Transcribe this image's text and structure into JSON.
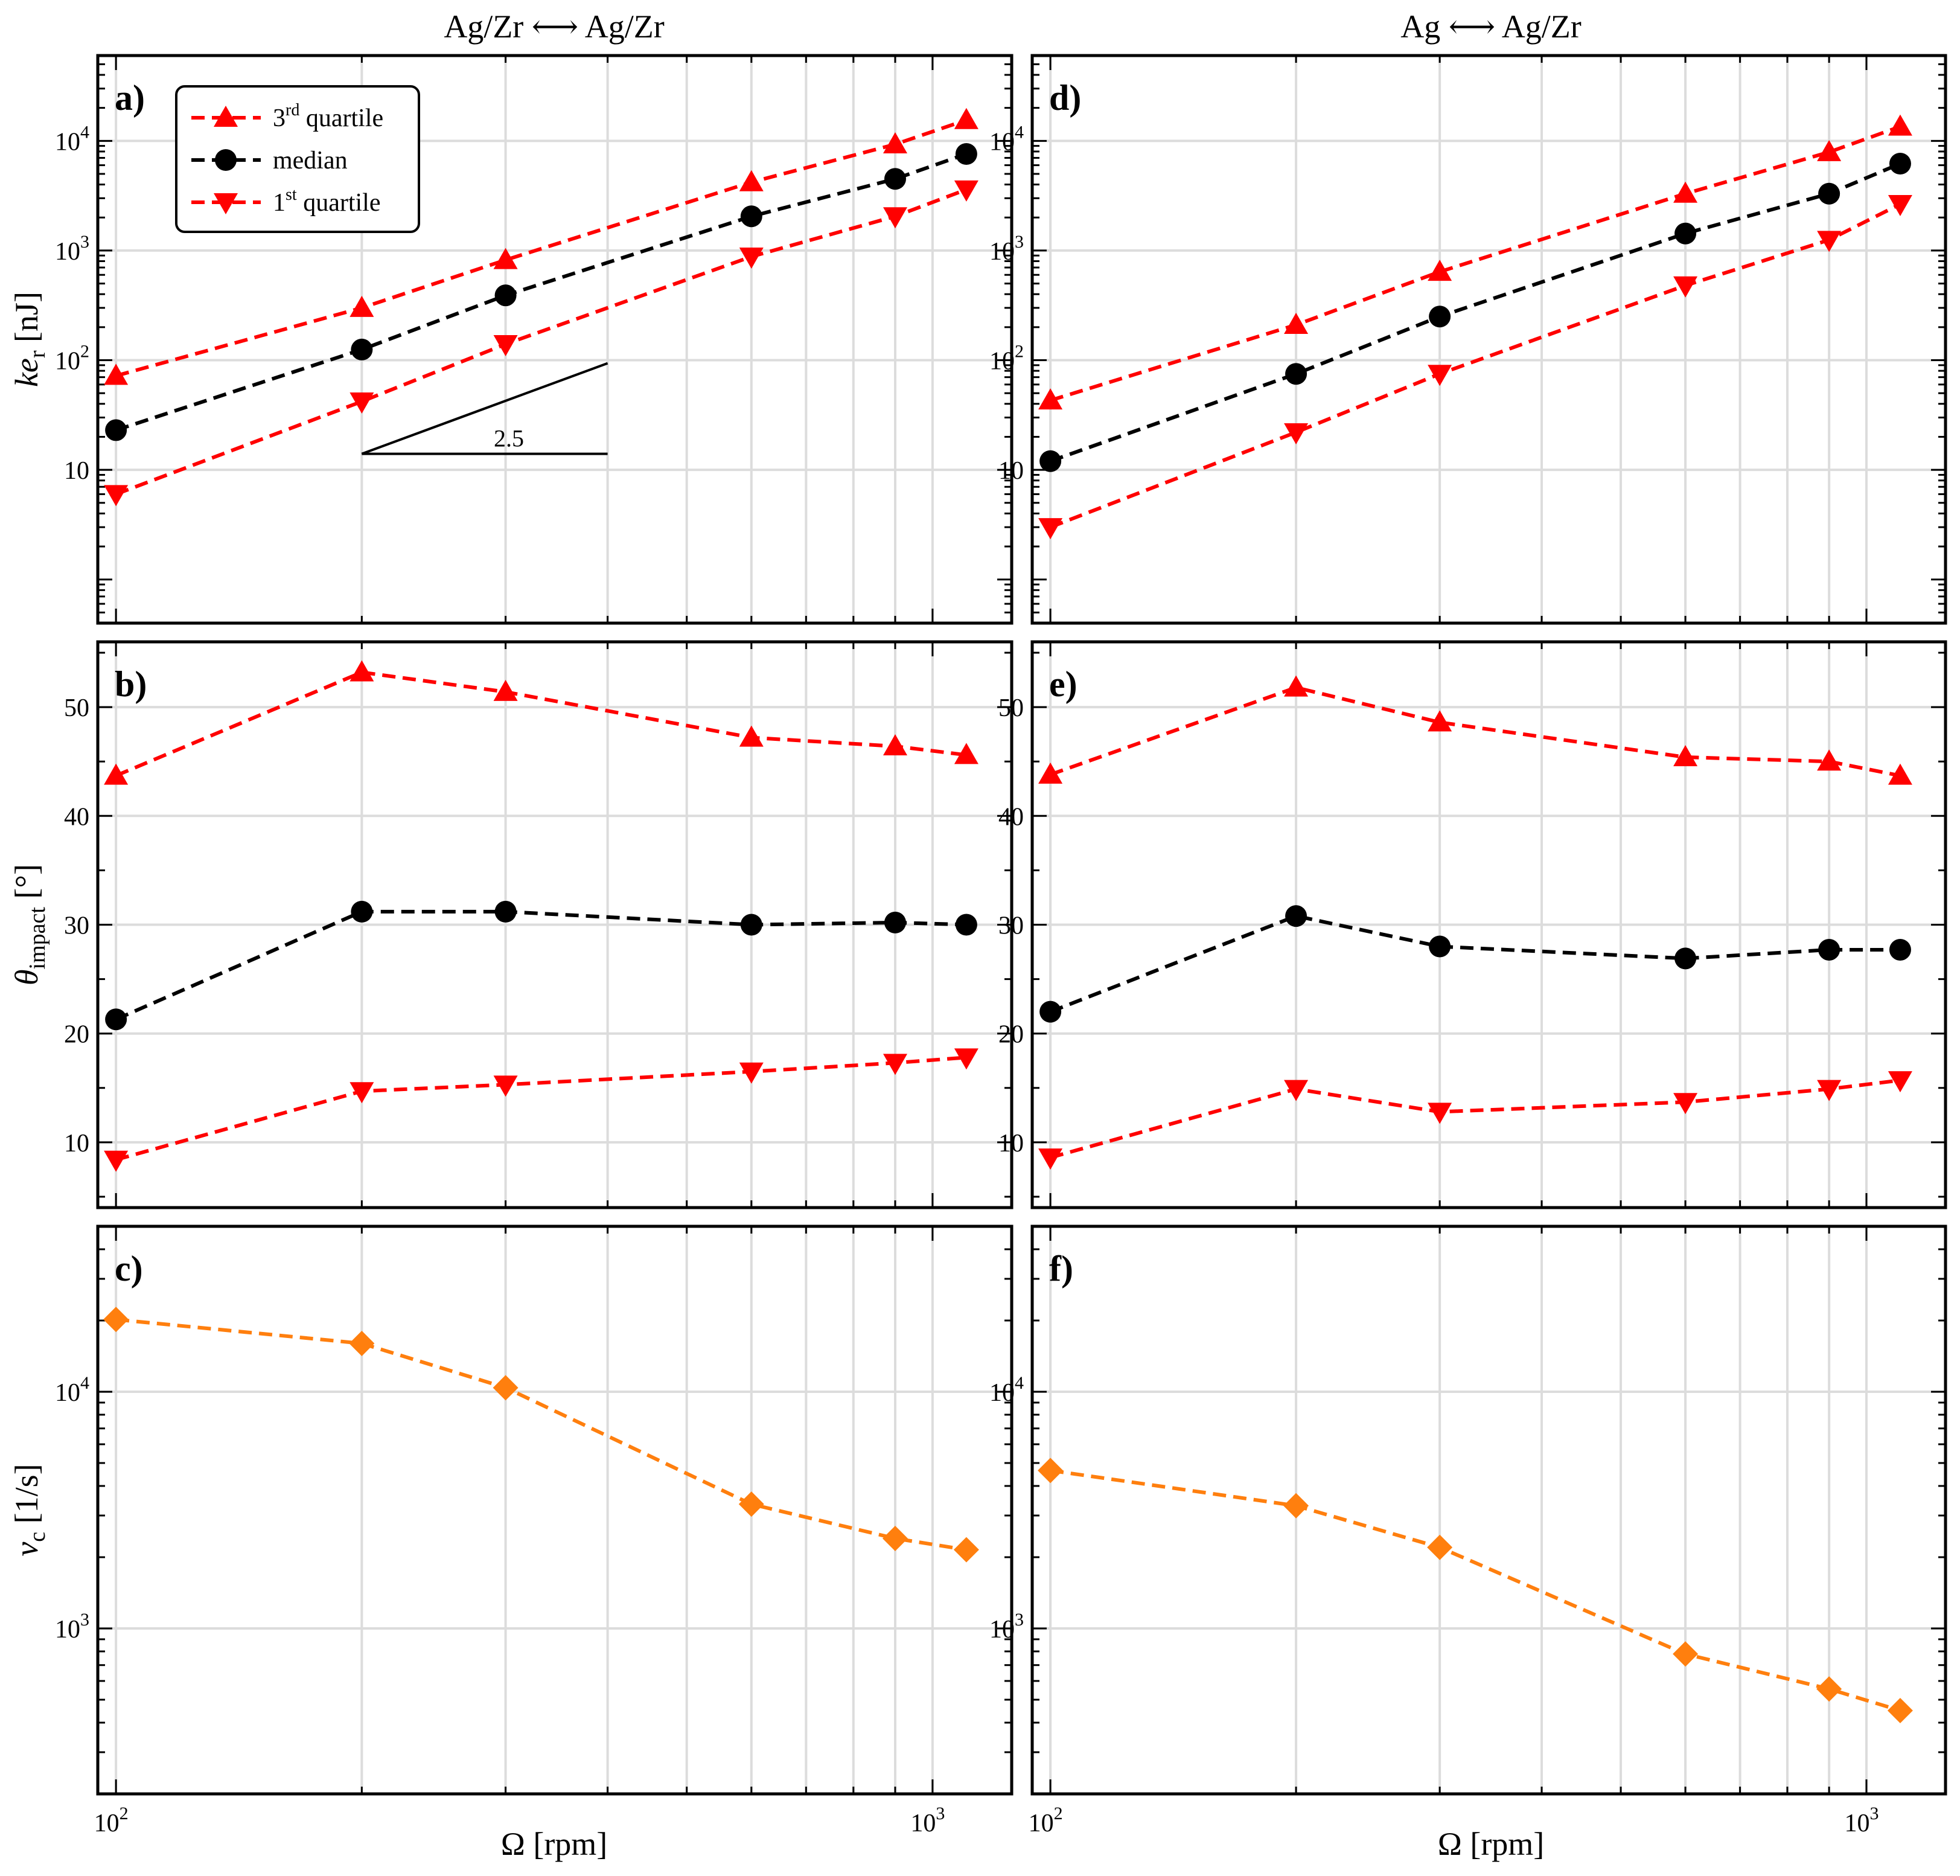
{
  "columns": [
    {
      "title": "Ag/Zr ⟷ Ag/Zr"
    },
    {
      "title": "Ag ⟷ Ag/Zr"
    }
  ],
  "x_axis": {
    "label": "Ω [rpm]",
    "scale": "log",
    "lim": [
      95,
      1250
    ],
    "tick_labels": [
      "10",
      "10"
    ],
    "tick_exponents": [
      "2",
      "3"
    ],
    "tick_values": [
      100,
      1000
    ]
  },
  "legend": {
    "entries": [
      {
        "label": "3",
        "sup": "rd",
        "rest": " quartile",
        "marker": "triangle-up",
        "color": "#ff0000"
      },
      {
        "label": "median",
        "sup": "",
        "rest": "",
        "marker": "circle",
        "color": "#000000"
      },
      {
        "label": "1",
        "sup": "st",
        "rest": " quartile",
        "marker": "triangle-down",
        "color": "#ff0000"
      }
    ]
  },
  "slope_annotation": {
    "text": "2.5"
  },
  "chart_data": [
    {
      "panel": "a)",
      "type": "line",
      "yscale": "log",
      "ylabel_main": "ke",
      "ylabel_sub": "r",
      "ylabel_unit": " [nJ]",
      "ylim": [
        0.4,
        60000
      ],
      "yticks": [
        {
          "v": 10,
          "t": "10",
          "e": ""
        },
        {
          "v": 100,
          "t": "10",
          "e": "2"
        },
        {
          "v": 1000,
          "t": "10",
          "e": "3"
        },
        {
          "v": 10000,
          "t": "10",
          "e": "4"
        }
      ],
      "x": [
        100,
        200,
        300,
        600,
        900,
        1100
      ],
      "series": [
        {
          "name": "3rd quartile",
          "color": "#ff0000",
          "marker": "triangle-up",
          "values": [
            72,
            300,
            820,
            4200,
            9300,
            15500
          ]
        },
        {
          "name": "median",
          "color": "#000000",
          "marker": "circle",
          "values": [
            23,
            125,
            390,
            2050,
            4500,
            7600
          ]
        },
        {
          "name": "1st quartile",
          "color": "#ff0000",
          "marker": "triangle-down",
          "values": [
            6,
            42,
            140,
            880,
            2050,
            3600
          ]
        }
      ]
    },
    {
      "panel": "b)",
      "type": "line",
      "yscale": "linear",
      "ylabel_main": "θ",
      "ylabel_sub": "impact",
      "ylabel_unit": " [°]",
      "ylim": [
        4,
        56
      ],
      "yticks": [
        {
          "v": 10,
          "t": "10",
          "e": ""
        },
        {
          "v": 20,
          "t": "20",
          "e": ""
        },
        {
          "v": 30,
          "t": "30",
          "e": ""
        },
        {
          "v": 40,
          "t": "40",
          "e": ""
        },
        {
          "v": 50,
          "t": "50",
          "e": ""
        }
      ],
      "x": [
        100,
        200,
        300,
        600,
        900,
        1100
      ],
      "series": [
        {
          "name": "3rd quartile",
          "color": "#ff0000",
          "marker": "triangle-up",
          "values": [
            43.7,
            53.2,
            51.4,
            47.2,
            46.4,
            45.6
          ]
        },
        {
          "name": "median",
          "color": "#000000",
          "marker": "circle",
          "values": [
            21.3,
            31.2,
            31.2,
            30.0,
            30.2,
            30.0
          ]
        },
        {
          "name": "1st quartile",
          "color": "#ff0000",
          "marker": "triangle-down",
          "values": [
            8.4,
            14.7,
            15.3,
            16.5,
            17.3,
            17.8
          ]
        }
      ]
    },
    {
      "panel": "c)",
      "type": "line",
      "yscale": "log",
      "ylabel_main": "ν",
      "ylabel_sub": "c",
      "ylabel_unit": " [1/s]",
      "ylim": [
        200,
        50000
      ],
      "yticks": [
        {
          "v": 1000,
          "t": "10",
          "e": "3"
        },
        {
          "v": 10000,
          "t": "10",
          "e": "4"
        }
      ],
      "x": [
        100,
        200,
        300,
        600,
        900,
        1100
      ],
      "series": [
        {
          "name": "ν_c",
          "color": "#ff7f0e",
          "marker": "diamond",
          "values": [
            20200,
            16000,
            10400,
            3350,
            2400,
            2150
          ]
        }
      ]
    },
    {
      "panel": "d)",
      "type": "line",
      "yscale": "log",
      "ylim": [
        0.4,
        60000
      ],
      "yticks": [
        {
          "v": 10,
          "t": "10",
          "e": ""
        },
        {
          "v": 100,
          "t": "10",
          "e": "2"
        },
        {
          "v": 1000,
          "t": "10",
          "e": "3"
        },
        {
          "v": 10000,
          "t": "10",
          "e": "4"
        }
      ],
      "x": [
        100,
        200,
        300,
        600,
        900,
        1100
      ],
      "series": [
        {
          "name": "3rd quartile",
          "color": "#ff0000",
          "marker": "triangle-up",
          "values": [
            43,
            210,
            640,
            3300,
            7900,
            13500
          ]
        },
        {
          "name": "median",
          "color": "#000000",
          "marker": "circle",
          "values": [
            12,
            75,
            250,
            1430,
            3300,
            6200
          ]
        },
        {
          "name": "1st quartile",
          "color": "#ff0000",
          "marker": "triangle-down",
          "values": [
            3,
            22,
            75,
            480,
            1250,
            2650
          ]
        }
      ]
    },
    {
      "panel": "e)",
      "type": "line",
      "yscale": "linear",
      "ylim": [
        4,
        56
      ],
      "yticks": [
        {
          "v": 10,
          "t": "10",
          "e": ""
        },
        {
          "v": 20,
          "t": "20",
          "e": ""
        },
        {
          "v": 30,
          "t": "30",
          "e": ""
        },
        {
          "v": 40,
          "t": "40",
          "e": ""
        },
        {
          "v": 50,
          "t": "50",
          "e": ""
        }
      ],
      "x": [
        100,
        200,
        300,
        600,
        900,
        1100
      ],
      "series": [
        {
          "name": "3rd quartile",
          "color": "#ff0000",
          "marker": "triangle-up",
          "values": [
            43.8,
            51.8,
            48.6,
            45.4,
            45.0,
            43.7
          ]
        },
        {
          "name": "median",
          "color": "#000000",
          "marker": "circle",
          "values": [
            22.0,
            30.8,
            28.0,
            26.9,
            27.7,
            27.7
          ]
        },
        {
          "name": "1st quartile",
          "color": "#ff0000",
          "marker": "triangle-down",
          "values": [
            8.6,
            14.9,
            12.8,
            13.7,
            14.9,
            15.7
          ]
        }
      ]
    },
    {
      "panel": "f)",
      "type": "line",
      "yscale": "log",
      "ylim": [
        200,
        50000
      ],
      "yticks": [
        {
          "v": 1000,
          "t": "10",
          "e": "3"
        },
        {
          "v": 10000,
          "t": "10",
          "e": "4"
        }
      ],
      "x": [
        100,
        200,
        300,
        600,
        900,
        1100
      ],
      "series": [
        {
          "name": "ν_c",
          "color": "#ff7f0e",
          "marker": "diamond",
          "values": [
            4650,
            3300,
            2200,
            780,
            555,
            450
          ]
        }
      ]
    }
  ]
}
